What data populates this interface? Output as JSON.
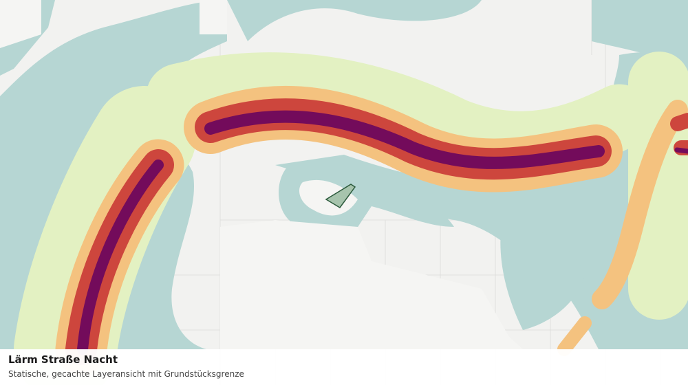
{
  "map": {
    "title": "Lärm Straße Nacht",
    "subtitle": "Statische, gecachte Layeransicht mit Grundstücksgrenze"
  }
}
